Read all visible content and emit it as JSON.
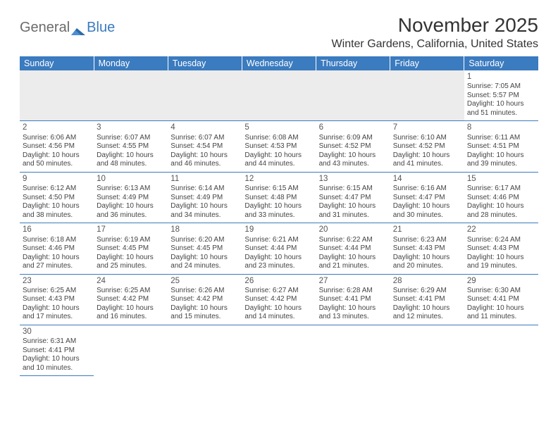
{
  "logo": {
    "text_general": "General",
    "text_blue": "Blue"
  },
  "title": "November 2025",
  "location": "Winter Gardens, California, United States",
  "colors": {
    "header_bg": "#3b7bbf",
    "text": "#333333",
    "cell_border": "#3b7bbf",
    "empty_bg": "#ececec"
  },
  "day_headers": [
    "Sunday",
    "Monday",
    "Tuesday",
    "Wednesday",
    "Thursday",
    "Friday",
    "Saturday"
  ],
  "weeks": [
    [
      null,
      null,
      null,
      null,
      null,
      null,
      {
        "n": "1",
        "sunrise": "7:05 AM",
        "sunset": "5:57 PM",
        "daylight": "10 hours and 51 minutes."
      }
    ],
    [
      {
        "n": "2",
        "sunrise": "6:06 AM",
        "sunset": "4:56 PM",
        "daylight": "10 hours and 50 minutes."
      },
      {
        "n": "3",
        "sunrise": "6:07 AM",
        "sunset": "4:55 PM",
        "daylight": "10 hours and 48 minutes."
      },
      {
        "n": "4",
        "sunrise": "6:07 AM",
        "sunset": "4:54 PM",
        "daylight": "10 hours and 46 minutes."
      },
      {
        "n": "5",
        "sunrise": "6:08 AM",
        "sunset": "4:53 PM",
        "daylight": "10 hours and 44 minutes."
      },
      {
        "n": "6",
        "sunrise": "6:09 AM",
        "sunset": "4:52 PM",
        "daylight": "10 hours and 43 minutes."
      },
      {
        "n": "7",
        "sunrise": "6:10 AM",
        "sunset": "4:52 PM",
        "daylight": "10 hours and 41 minutes."
      },
      {
        "n": "8",
        "sunrise": "6:11 AM",
        "sunset": "4:51 PM",
        "daylight": "10 hours and 39 minutes."
      }
    ],
    [
      {
        "n": "9",
        "sunrise": "6:12 AM",
        "sunset": "4:50 PM",
        "daylight": "10 hours and 38 minutes."
      },
      {
        "n": "10",
        "sunrise": "6:13 AM",
        "sunset": "4:49 PM",
        "daylight": "10 hours and 36 minutes."
      },
      {
        "n": "11",
        "sunrise": "6:14 AM",
        "sunset": "4:49 PM",
        "daylight": "10 hours and 34 minutes."
      },
      {
        "n": "12",
        "sunrise": "6:15 AM",
        "sunset": "4:48 PM",
        "daylight": "10 hours and 33 minutes."
      },
      {
        "n": "13",
        "sunrise": "6:15 AM",
        "sunset": "4:47 PM",
        "daylight": "10 hours and 31 minutes."
      },
      {
        "n": "14",
        "sunrise": "6:16 AM",
        "sunset": "4:47 PM",
        "daylight": "10 hours and 30 minutes."
      },
      {
        "n": "15",
        "sunrise": "6:17 AM",
        "sunset": "4:46 PM",
        "daylight": "10 hours and 28 minutes."
      }
    ],
    [
      {
        "n": "16",
        "sunrise": "6:18 AM",
        "sunset": "4:46 PM",
        "daylight": "10 hours and 27 minutes."
      },
      {
        "n": "17",
        "sunrise": "6:19 AM",
        "sunset": "4:45 PM",
        "daylight": "10 hours and 25 minutes."
      },
      {
        "n": "18",
        "sunrise": "6:20 AM",
        "sunset": "4:45 PM",
        "daylight": "10 hours and 24 minutes."
      },
      {
        "n": "19",
        "sunrise": "6:21 AM",
        "sunset": "4:44 PM",
        "daylight": "10 hours and 23 minutes."
      },
      {
        "n": "20",
        "sunrise": "6:22 AM",
        "sunset": "4:44 PM",
        "daylight": "10 hours and 21 minutes."
      },
      {
        "n": "21",
        "sunrise": "6:23 AM",
        "sunset": "4:43 PM",
        "daylight": "10 hours and 20 minutes."
      },
      {
        "n": "22",
        "sunrise": "6:24 AM",
        "sunset": "4:43 PM",
        "daylight": "10 hours and 19 minutes."
      }
    ],
    [
      {
        "n": "23",
        "sunrise": "6:25 AM",
        "sunset": "4:43 PM",
        "daylight": "10 hours and 17 minutes."
      },
      {
        "n": "24",
        "sunrise": "6:25 AM",
        "sunset": "4:42 PM",
        "daylight": "10 hours and 16 minutes."
      },
      {
        "n": "25",
        "sunrise": "6:26 AM",
        "sunset": "4:42 PM",
        "daylight": "10 hours and 15 minutes."
      },
      {
        "n": "26",
        "sunrise": "6:27 AM",
        "sunset": "4:42 PM",
        "daylight": "10 hours and 14 minutes."
      },
      {
        "n": "27",
        "sunrise": "6:28 AM",
        "sunset": "4:41 PM",
        "daylight": "10 hours and 13 minutes."
      },
      {
        "n": "28",
        "sunrise": "6:29 AM",
        "sunset": "4:41 PM",
        "daylight": "10 hours and 12 minutes."
      },
      {
        "n": "29",
        "sunrise": "6:30 AM",
        "sunset": "4:41 PM",
        "daylight": "10 hours and 11 minutes."
      }
    ],
    [
      {
        "n": "30",
        "sunrise": "6:31 AM",
        "sunset": "4:41 PM",
        "daylight": "10 hours and 10 minutes."
      },
      null,
      null,
      null,
      null,
      null,
      null
    ]
  ],
  "labels": {
    "sunrise": "Sunrise: ",
    "sunset": "Sunset: ",
    "daylight": "Daylight: "
  }
}
